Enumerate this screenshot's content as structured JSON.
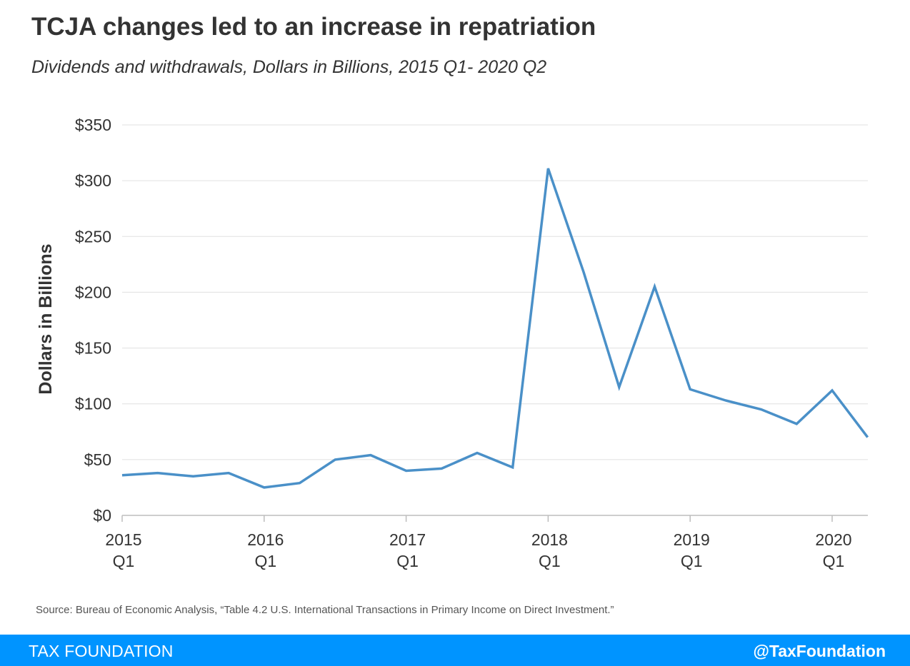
{
  "title": "TCJA changes led to an increase in repatriation",
  "subtitle": "Dividends and withdrawals, Dollars in Billions, 2015 Q1- 2020 Q2",
  "source": "Source: Bureau of Economic Analysis, “Table 4.2 U.S. International Transactions in Primary Income on Direct Investment.”",
  "footer": {
    "brand": "TAX FOUNDATION",
    "handle": "@TaxFoundation"
  },
  "colors": {
    "line": "#4a90c8",
    "footer_bg": "#0094ff",
    "gridline": "#e0e0e0"
  },
  "chart_data": {
    "type": "line",
    "ylabel": "Dollars in Billions",
    "xlabel": "",
    "ylim": [
      0,
      350
    ],
    "yticks": [
      0,
      50,
      100,
      150,
      200,
      250,
      300,
      350
    ],
    "ytick_labels": [
      "$0",
      "$50",
      "$100",
      "$150",
      "$200",
      "$250",
      "$300",
      "$350"
    ],
    "grid": "horizontal",
    "x": [
      "2015 Q1",
      "2015 Q2",
      "2015 Q3",
      "2015 Q4",
      "2016 Q1",
      "2016 Q2",
      "2016 Q3",
      "2016 Q4",
      "2017 Q1",
      "2017 Q2",
      "2017 Q3",
      "2017 Q4",
      "2018 Q1",
      "2018 Q2",
      "2018 Q3",
      "2018 Q4",
      "2019 Q1",
      "2019 Q2",
      "2019 Q3",
      "2019 Q4",
      "2020 Q1",
      "2020 Q2"
    ],
    "xtick_labels": [
      {
        "x": "2015 Q1",
        "line1": "2015",
        "line2": "Q1"
      },
      {
        "x": "2016 Q1",
        "line1": "2016",
        "line2": "Q1"
      },
      {
        "x": "2017 Q1",
        "line1": "2017",
        "line2": "Q1"
      },
      {
        "x": "2018 Q1",
        "line1": "2018",
        "line2": "Q1"
      },
      {
        "x": "2019 Q1",
        "line1": "2019",
        "line2": "Q1"
      },
      {
        "x": "2020 Q1",
        "line1": "2020",
        "line2": "Q1"
      }
    ],
    "series": [
      {
        "values": [
          36,
          38,
          35,
          38,
          25,
          29,
          50,
          54,
          40,
          42,
          56,
          43,
          311,
          218,
          115,
          205,
          113,
          103,
          95,
          82,
          112,
          70
        ]
      }
    ]
  }
}
